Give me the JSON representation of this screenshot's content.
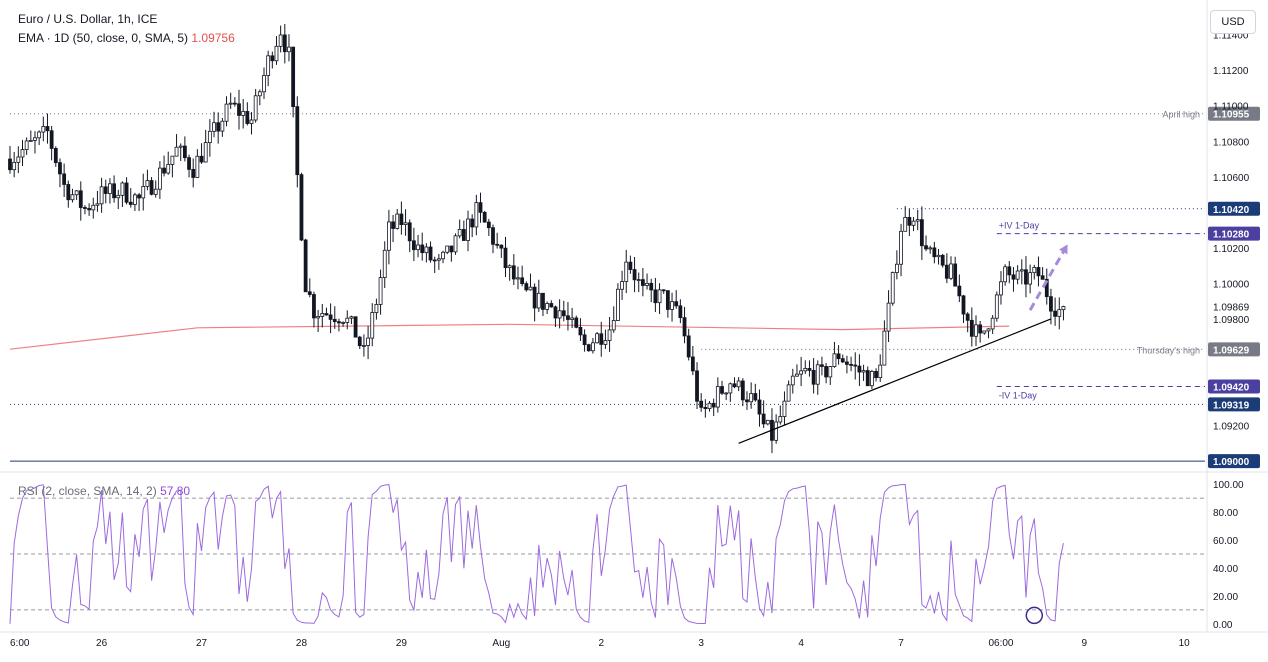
{
  "header": {
    "title": "Euro / U.S. Dollar, 1h, ICE",
    "indicator": "EMA · 1D (50, close, 0, SMA, 5)",
    "indicator_value": "1.09756",
    "currency_button": "USD"
  },
  "rsi_header": {
    "label": "RSI (2, close, SMA, 14, 2)",
    "value": "57.80"
  },
  "colors": {
    "up": "#ffffff",
    "down": "#131722",
    "ema": "#f08080",
    "rsi": "#9c6ade",
    "trendline": "#000000",
    "arrow": "#a78bdb",
    "iv": "#4b3fa0",
    "dark_label": "#1c3c78",
    "grey_label": "#787b86"
  },
  "chart_data": [
    {
      "type": "candlestick",
      "title": "Euro / U.S. Dollar, 1h, ICE",
      "ylim": [
        1.0895,
        1.1155
      ],
      "y_ticks": [
        "1.11400",
        "1.11200",
        "1.11000",
        "1.10800",
        "1.10600",
        "1.10200",
        "1.10000",
        "1.09800",
        "1.09200"
      ],
      "x_ticks": [
        {
          "label": "6:00",
          "x": 0
        },
        {
          "label": "26",
          "x": 22
        },
        {
          "label": "27",
          "x": 46
        },
        {
          "label": "28",
          "x": 70
        },
        {
          "label": "29",
          "x": 94
        },
        {
          "label": "Aug",
          "x": 118
        },
        {
          "label": "2",
          "x": 142
        },
        {
          "label": "3",
          "x": 166
        },
        {
          "label": "4",
          "x": 190
        },
        {
          "label": "7",
          "x": 214
        },
        {
          "label": "06:00",
          "x": 238
        },
        {
          "label": "9",
          "x": 258
        },
        {
          "label": "10",
          "x": 282
        }
      ],
      "xlim": [
        0,
        287
      ],
      "price_path": [
        [
          0,
          1.107
        ],
        [
          5,
          1.1078
        ],
        [
          9,
          1.1085
        ],
        [
          13,
          1.1055
        ],
        [
          18,
          1.1042
        ],
        [
          22,
          1.105
        ],
        [
          27,
          1.1052
        ],
        [
          31,
          1.1047
        ],
        [
          36,
          1.1062
        ],
        [
          40,
          1.1075
        ],
        [
          44,
          1.1065
        ],
        [
          49,
          1.1085
        ],
        [
          53,
          1.11
        ],
        [
          58,
          1.1092
        ],
        [
          62,
          1.1125
        ],
        [
          65,
          1.1143
        ],
        [
          67,
          1.1128
        ],
        [
          69,
          1.106
        ],
        [
          71,
          1.1
        ],
        [
          73,
          1.0985
        ],
        [
          77,
          1.0983
        ],
        [
          80,
          1.0982
        ],
        [
          83,
          1.0972
        ],
        [
          85,
          1.096
        ],
        [
          88,
          1.099
        ],
        [
          91,
          1.103
        ],
        [
          94,
          1.1035
        ],
        [
          98,
          1.102
        ],
        [
          103,
          1.101
        ],
        [
          108,
          1.1025
        ],
        [
          112,
          1.104
        ],
        [
          115,
          1.103
        ],
        [
          119,
          1.101
        ],
        [
          123,
          1.0995
        ],
        [
          127,
          1.099
        ],
        [
          132,
          1.0985
        ],
        [
          135,
          1.0975
        ],
        [
          138,
          1.0965
        ],
        [
          141,
          1.097
        ],
        [
          144,
          1.0975
        ],
        [
          148,
          1.1015
        ],
        [
          152,
          1.0995
        ],
        [
          157,
          1.0992
        ],
        [
          161,
          1.098
        ],
        [
          163,
          1.096
        ],
        [
          166,
          1.0925
        ],
        [
          169,
          1.0935
        ],
        [
          173,
          1.0945
        ],
        [
          178,
          1.0935
        ],
        [
          181,
          1.092
        ],
        [
          183,
          1.0914
        ],
        [
          186,
          1.093
        ],
        [
          188,
          1.0945
        ],
        [
          191,
          1.095
        ],
        [
          195,
          1.0948
        ],
        [
          199,
          1.096
        ],
        [
          203,
          1.0952
        ],
        [
          208,
          1.0945
        ],
        [
          211,
          1.0985
        ],
        [
          214,
          1.1032
        ],
        [
          217,
          1.104
        ],
        [
          220,
          1.1018
        ],
        [
          223,
          1.101
        ],
        [
          226,
          1.1005
        ],
        [
          230,
          1.098
        ],
        [
          233,
          1.0968
        ],
        [
          236,
          1.0985
        ],
        [
          239,
          1.1005
        ],
        [
          243,
          1.1002
        ],
        [
          247,
          1.1005
        ],
        [
          250,
          1.099
        ],
        [
          253,
          1.0982
        ]
      ],
      "ema_50_1d": [
        [
          0,
          1.0963
        ],
        [
          45,
          1.0975
        ],
        [
          120,
          1.0977
        ],
        [
          200,
          1.0974
        ],
        [
          240,
          1.0976
        ]
      ],
      "current_price": 1.09869,
      "reference_lines": [
        {
          "label": "April high",
          "value": 1.10955,
          "style": "dotted",
          "tag_color": "#787b86"
        },
        {
          "value": 1.1042,
          "style": "dotted",
          "tag_color": "#1c3c78",
          "from_x": 213
        },
        {
          "label": "+IV 1-Day",
          "value": 1.1028,
          "style": "dashed",
          "tag_color": "#4b3fa0",
          "from_x": 237
        },
        {
          "label": "Thursday's high",
          "value": 1.09629,
          "style": "dotted",
          "tag_color": "#787b86",
          "from_x": 166
        },
        {
          "label": "-IV 1-Day",
          "value": 1.0942,
          "style": "dashed",
          "tag_color": "#4b3fa0",
          "from_x": 237
        },
        {
          "value": 1.09319,
          "style": "dotted",
          "tag_color": "#1c3c78"
        },
        {
          "value": 1.09,
          "style": "solid",
          "tag_color": "#1c3c78"
        }
      ],
      "trendline": {
        "from": [
          175,
          1.091
        ],
        "to": [
          250,
          1.098
        ]
      },
      "projection_arrow": {
        "from": [
          245,
          1.0985
        ],
        "to": [
          254,
          1.1022
        ]
      }
    },
    {
      "type": "line",
      "title": "RSI (2, close, SMA, 14, 2)",
      "ylim": [
        -3,
        103
      ],
      "y_ticks": [
        "100.00",
        "80.00",
        "60.00",
        "40.00",
        "20.00",
        "0.00"
      ],
      "levels": [
        90,
        50,
        10
      ],
      "last_value": 57.8
    }
  ]
}
